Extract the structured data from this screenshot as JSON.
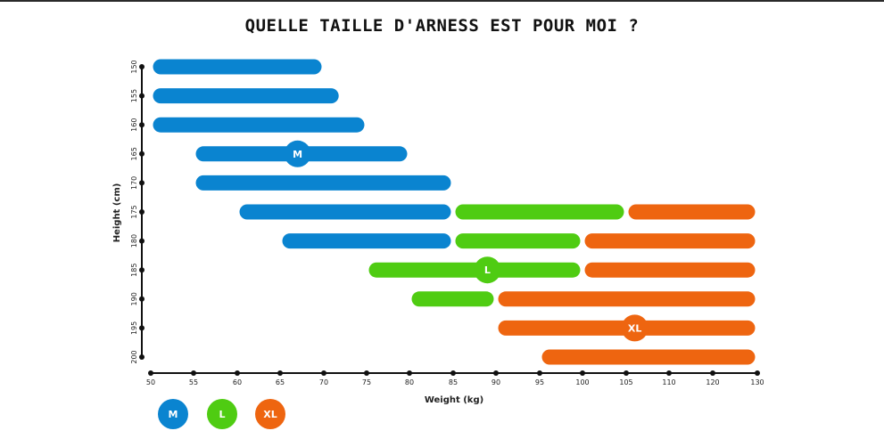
{
  "title": "QUELLE TAILLE D'ARNESS EST POUR MOI ?",
  "colors": {
    "M": "#0a84d0",
    "L": "#4fcc12",
    "XL": "#ee6510",
    "axis": "#111111"
  },
  "chart_data": {
    "type": "bar",
    "orientation": "horizontal-range",
    "xlabel": "Weight (kg)",
    "ylabel": "Height (cm)",
    "xlim": [
      50,
      130
    ],
    "x_ticks": [
      50,
      55,
      60,
      65,
      70,
      75,
      80,
      85,
      90,
      95,
      100,
      105,
      110,
      120,
      130
    ],
    "y_ticks": [
      150,
      155,
      160,
      165,
      170,
      175,
      180,
      185,
      190,
      195,
      200
    ],
    "series": [
      {
        "name": "M",
        "ranges": [
          {
            "height": 150,
            "from": 50,
            "to": 70
          },
          {
            "height": 155,
            "from": 50,
            "to": 72
          },
          {
            "height": 160,
            "from": 50,
            "to": 75
          },
          {
            "height": 165,
            "from": 55,
            "to": 80
          },
          {
            "height": 170,
            "from": 55,
            "to": 85
          },
          {
            "height": 175,
            "from": 60,
            "to": 85
          },
          {
            "height": 180,
            "from": 65,
            "to": 85
          }
        ],
        "badge": {
          "height": 165,
          "weight": 67
        }
      },
      {
        "name": "L",
        "ranges": [
          {
            "height": 175,
            "from": 85,
            "to": 105
          },
          {
            "height": 180,
            "from": 85,
            "to": 100
          },
          {
            "height": 185,
            "from": 75,
            "to": 100
          },
          {
            "height": 190,
            "from": 80,
            "to": 90
          }
        ],
        "badge": {
          "height": 185,
          "weight": 89
        }
      },
      {
        "name": "XL",
        "ranges": [
          {
            "height": 175,
            "from": 105,
            "to": 130
          },
          {
            "height": 180,
            "from": 100,
            "to": 130
          },
          {
            "height": 185,
            "from": 100,
            "to": 130
          },
          {
            "height": 190,
            "from": 90,
            "to": 130
          },
          {
            "height": 195,
            "from": 90,
            "to": 130
          },
          {
            "height": 200,
            "from": 95,
            "to": 130
          }
        ],
        "badge": {
          "height": 195,
          "weight": 106
        }
      }
    ],
    "legend": {
      "placement": "bottom-left",
      "entries": [
        "M",
        "L",
        "XL"
      ]
    }
  }
}
